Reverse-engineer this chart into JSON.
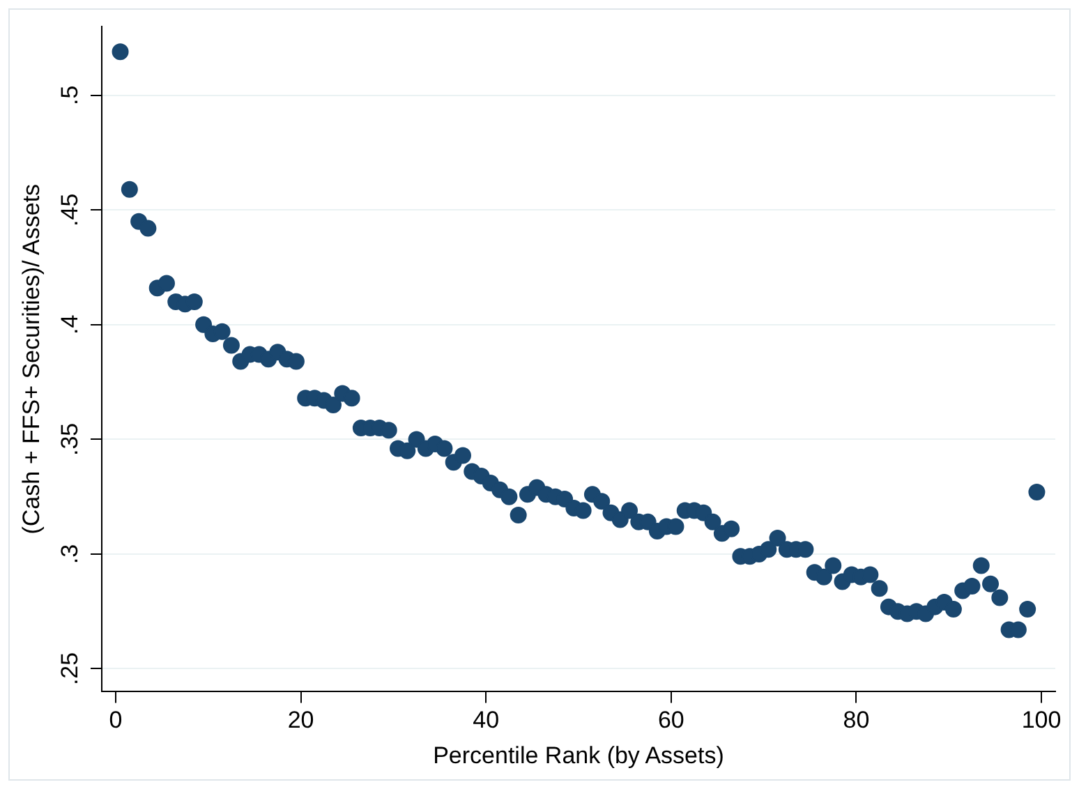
{
  "chart_data": {
    "type": "scatter",
    "xlabel": "Percentile Rank (by Assets)",
    "ylabel": "(Cash + FFS+ Securities)/ Assets",
    "x": [
      0.5,
      1.5,
      2.5,
      3.5,
      4.5,
      5.5,
      6.5,
      7.5,
      8.5,
      9.5,
      10.5,
      11.5,
      12.5,
      13.5,
      14.5,
      15.5,
      16.5,
      17.5,
      18.5,
      19.5,
      20.5,
      21.5,
      22.5,
      23.5,
      24.5,
      25.5,
      26.5,
      27.5,
      28.5,
      29.5,
      30.5,
      31.5,
      32.5,
      33.5,
      34.5,
      35.5,
      36.5,
      37.5,
      38.5,
      39.5,
      40.5,
      41.5,
      42.5,
      43.5,
      44.5,
      45.5,
      46.5,
      47.5,
      48.5,
      49.5,
      50.5,
      51.5,
      52.5,
      53.5,
      54.5,
      55.5,
      56.5,
      57.5,
      58.5,
      59.5,
      60.5,
      61.5,
      62.5,
      63.5,
      64.5,
      65.5,
      66.5,
      67.5,
      68.5,
      69.5,
      70.5,
      71.5,
      72.5,
      73.5,
      74.5,
      75.5,
      76.5,
      77.5,
      78.5,
      79.5,
      80.5,
      81.5,
      82.5,
      83.5,
      84.5,
      85.5,
      86.5,
      87.5,
      88.5,
      89.5,
      90.5,
      91.5,
      92.5,
      93.5,
      94.5,
      95.5,
      96.5,
      97.5,
      98.5,
      99.5
    ],
    "series": [
      {
        "color": "#1a476f",
        "values": [
          0.519,
          0.459,
          0.445,
          0.442,
          0.416,
          0.418,
          0.41,
          0.409,
          0.41,
          0.4,
          0.396,
          0.397,
          0.391,
          0.384,
          0.387,
          0.387,
          0.385,
          0.388,
          0.385,
          0.384,
          0.368,
          0.368,
          0.367,
          0.365,
          0.37,
          0.368,
          0.355,
          0.355,
          0.355,
          0.354,
          0.346,
          0.345,
          0.35,
          0.346,
          0.348,
          0.346,
          0.34,
          0.343,
          0.336,
          0.334,
          0.331,
          0.328,
          0.325,
          0.317,
          0.326,
          0.329,
          0.326,
          0.325,
          0.324,
          0.32,
          0.319,
          0.326,
          0.323,
          0.318,
          0.315,
          0.319,
          0.314,
          0.314,
          0.31,
          0.312,
          0.312,
          0.319,
          0.319,
          0.318,
          0.314,
          0.309,
          0.311,
          0.299,
          0.299,
          0.3,
          0.302,
          0.307,
          0.302,
          0.302,
          0.302,
          0.292,
          0.29,
          0.295,
          0.288,
          0.291,
          0.29,
          0.291,
          0.285,
          0.277,
          0.275,
          0.274,
          0.275,
          0.274,
          0.277,
          0.279,
          0.276,
          0.284,
          0.286,
          0.295,
          0.287,
          0.281,
          0.267,
          0.267,
          0.276,
          0.327
        ]
      }
    ],
    "xlim": [
      -1.5,
      101.5
    ],
    "ylim": [
      0.24,
      0.53
    ],
    "xticks": [
      0,
      20,
      40,
      60,
      80,
      100
    ],
    "yticks": [
      {
        "value": 0.25,
        "label": ".25"
      },
      {
        "value": 0.3,
        "label": ".3"
      },
      {
        "value": 0.35,
        "label": ".35"
      },
      {
        "value": 0.4,
        "label": ".4"
      },
      {
        "value": 0.45,
        "label": ".45"
      },
      {
        "value": 0.5,
        "label": ".5"
      }
    ],
    "grid": "y",
    "marker": "circle"
  }
}
